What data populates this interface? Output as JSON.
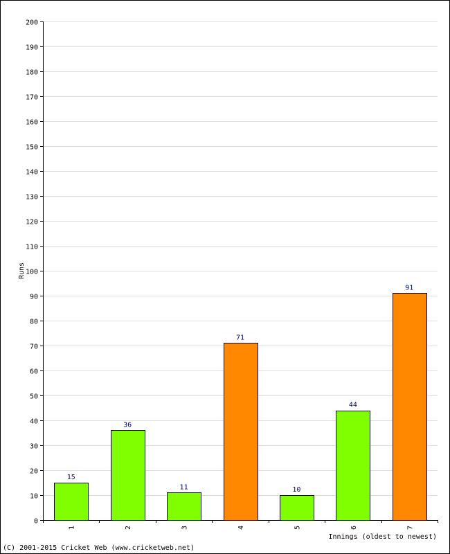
{
  "chart_data": {
    "type": "bar",
    "categories": [
      "1",
      "2",
      "3",
      "4",
      "5",
      "6",
      "7"
    ],
    "values": [
      15,
      36,
      11,
      71,
      10,
      44,
      91
    ],
    "data_labels": [
      "15",
      "36",
      "11",
      "71",
      "10",
      "44",
      "91"
    ],
    "bar_colors": [
      "#80ff00",
      "#80ff00",
      "#80ff00",
      "#ff8800",
      "#80ff00",
      "#80ff00",
      "#ff8800"
    ],
    "xlabel": "Innings (oldest to newest)",
    "ylabel": "Runs",
    "ylim": [
      0,
      200
    ],
    "y_tick_step": 10,
    "grid": true,
    "colors": {
      "not_out": "#80ff00",
      "out": "#ff8800",
      "data_label": "#000080",
      "grid": "#dddddd"
    }
  },
  "footer": {
    "copyright": "(C) 2001-2015 Cricket Web (www.cricketweb.net)"
  }
}
